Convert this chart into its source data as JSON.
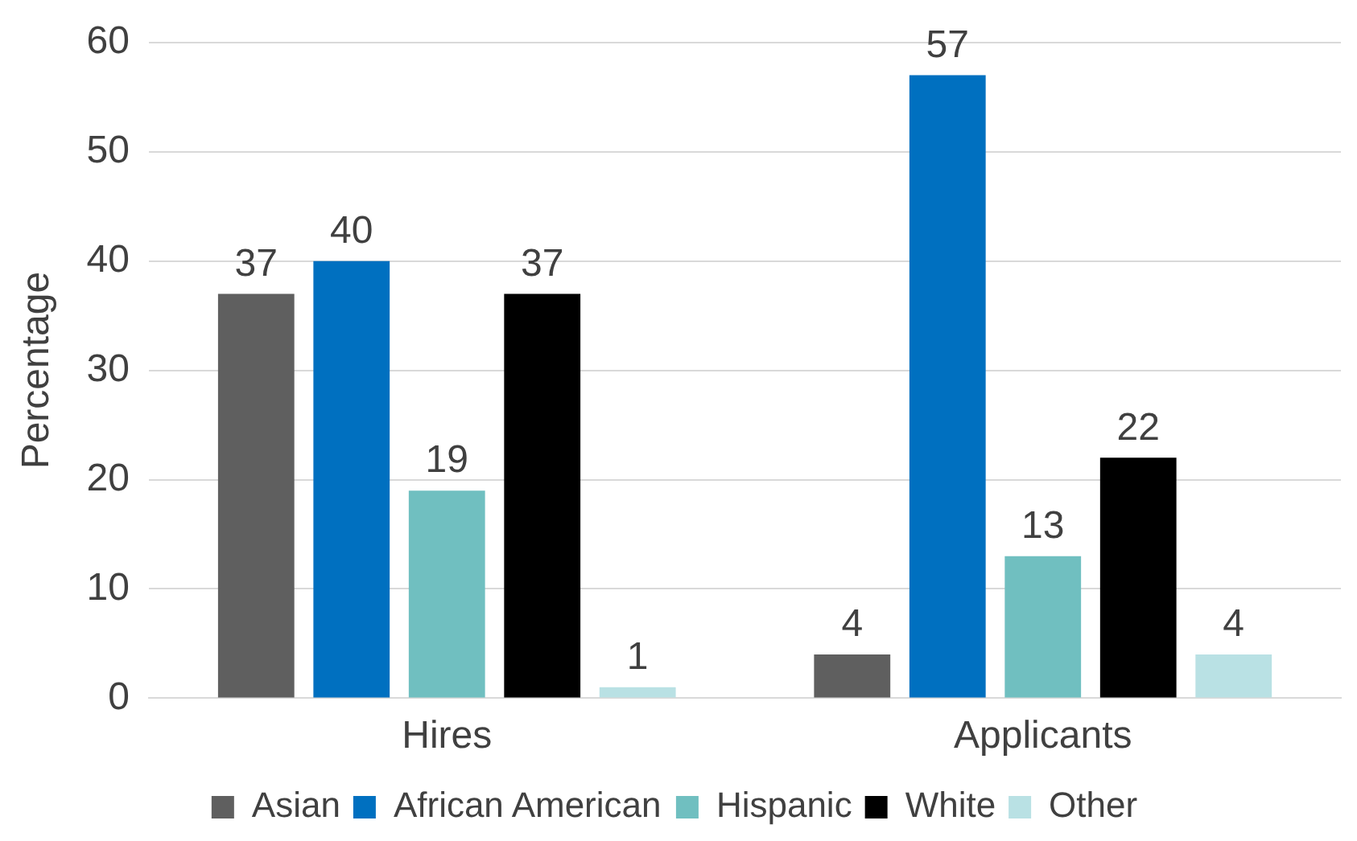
{
  "chart_data": {
    "type": "bar",
    "ylabel": "Percentage",
    "categories": [
      "Hires",
      "Applicants"
    ],
    "series": [
      {
        "name": "Asian",
        "color": "#5f5f5f",
        "values": [
          37,
          4
        ]
      },
      {
        "name": "African American",
        "color": "#0070c0",
        "values": [
          40,
          57
        ]
      },
      {
        "name": "Hispanic",
        "color": "#70bfc0",
        "values": [
          19,
          13
        ]
      },
      {
        "name": "White",
        "color": "#000000",
        "values": [
          37,
          22
        ]
      },
      {
        "name": "Other",
        "color": "#b9e1e4",
        "values": [
          1,
          4
        ]
      }
    ],
    "ylim": [
      0,
      60
    ],
    "yticks": [
      0,
      10,
      20,
      30,
      40,
      50,
      60
    ],
    "grid": "y",
    "legend": "bottom",
    "data_labels": true
  }
}
